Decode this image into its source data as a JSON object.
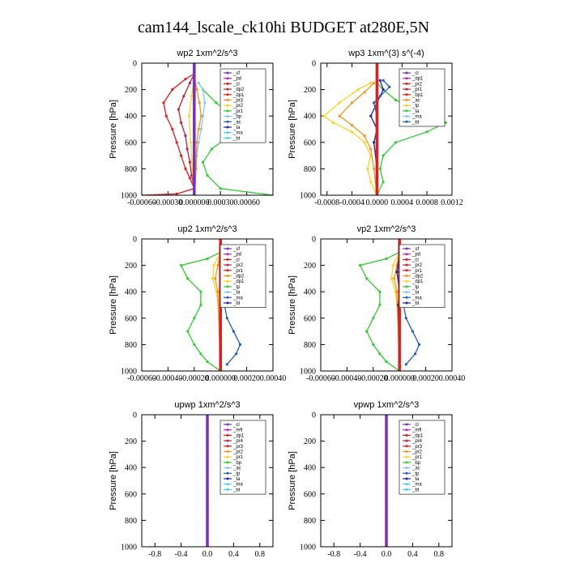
{
  "title": "cam144_lscale_ck10hi  BUDGET at280E,5N",
  "colors": {
    "purple": "#7b2fbf",
    "red": "#e21b1b",
    "darkred": "#c41e3a",
    "orange": "#f7941d",
    "yellow": "#ffd21f",
    "green": "#2ecc2e",
    "blue": "#1f5fbf",
    "cyan": "#3fd0ff",
    "navy": "#2020a0",
    "lightblue": "#7ec8ff",
    "magenta": "#c020c0"
  },
  "chart_data": [
    {
      "type": "line",
      "title": "wp2  1xm^2/s^3",
      "ylabel": "Pressure [hPa]",
      "ylim": [
        0,
        1000
      ],
      "yticks": [
        0,
        200,
        400,
        600,
        800,
        1000
      ],
      "xlim": [
        -0.0006,
        0.0009
      ],
      "xtick_values": [
        -0.0006,
        -0.0003,
        0.0,
        0.0003,
        0.0006
      ],
      "xtick_labels": [
        "-0.00060",
        "-0.00030",
        "0.000000",
        "0.00030",
        "0.00060"
      ],
      "legend": [
        "_sf",
        "_pd",
        "_cl",
        "_dp2",
        "_dp1",
        "_pr3",
        "_pr2",
        "_pr1",
        "_bp",
        "_ac",
        "_ta",
        "_ma",
        "_bt"
      ],
      "series": [
        {
          "name": "_cl",
          "color": "red",
          "x": [
            0,
            -0.0001,
            -0.00025,
            -0.00035,
            -0.00032,
            -0.00025,
            -0.0002,
            -0.00015,
            -0.0001,
            -5e-05,
            0,
            -0.0002,
            -0.0006
          ],
          "y": [
            80,
            120,
            200,
            300,
            400,
            500,
            600,
            700,
            800,
            870,
            950,
            990,
            1000
          ]
        },
        {
          "name": "_dp1",
          "color": "darkred",
          "x": [
            0,
            -5e-05,
            -0.00012,
            -0.00018,
            -0.00015,
            -0.0001,
            -8e-05,
            -5e-05,
            -3e-05,
            0,
            0
          ],
          "y": [
            80,
            150,
            250,
            350,
            450,
            550,
            650,
            750,
            850,
            950,
            1000
          ]
        },
        {
          "name": "_pr1",
          "color": "green",
          "x": [
            5e-05,
            0.0001,
            0.00025,
            0.00045,
            0.0006,
            0.0004,
            0.0002,
            0.0001,
            0.00015,
            0.0003,
            0.0009
          ],
          "y": [
            150,
            200,
            300,
            400,
            450,
            550,
            650,
            750,
            850,
            950,
            1000
          ]
        },
        {
          "name": "_bp",
          "color": "lightblue",
          "x": [
            5e-05,
            0.0001,
            0.00012,
            0.0001,
            8e-05,
            5e-05,
            3e-05,
            2e-05,
            1e-05,
            0.0
          ],
          "y": [
            150,
            200,
            300,
            400,
            500,
            600,
            700,
            800,
            900,
            1000
          ]
        },
        {
          "name": "_pr2",
          "color": "orange",
          "x": [
            0,
            3e-05,
            6e-05,
            8e-05,
            5e-05,
            3e-05,
            2e-05,
            0.0
          ],
          "y": [
            100,
            200,
            300,
            400,
            500,
            600,
            800,
            1000
          ]
        },
        {
          "name": "_pr3",
          "color": "yellow",
          "x": [
            0,
            -3e-05,
            -6e-05,
            -4e-05,
            -2e-05,
            0.0
          ],
          "y": [
            100,
            250,
            400,
            600,
            800,
            1000
          ]
        },
        {
          "name": "_sf",
          "color": "purple",
          "x": [
            0,
            0,
            0,
            0
          ],
          "y": [
            0,
            300,
            700,
            1000
          ]
        }
      ]
    },
    {
      "type": "line",
      "title": "wp3  1xm^(3) s^(-4)",
      "ylabel": "Pressure [hPa]",
      "ylim": [
        0,
        1000
      ],
      "yticks": [
        0,
        200,
        400,
        600,
        800,
        1000
      ],
      "xlim": [
        -0.0009,
        0.0012
      ],
      "xtick_values": [
        -0.0008,
        -0.0004,
        0.0,
        0.0004,
        0.0008,
        0.0012
      ],
      "xtick_labels": [
        "-0.0008",
        "-0.0004",
        "0.0000",
        "0.0004",
        "0.0008",
        "0.0012"
      ],
      "legend": [
        "_cl",
        "_dp1",
        "_pr2",
        "_pr1",
        "_bp1",
        "_ac",
        "_tp",
        "_ta",
        "_ma",
        "_bt"
      ],
      "series": [
        {
          "name": "_pr1",
          "color": "green",
          "x": [
            0,
            0.0001,
            0.0003,
            0.0007,
            0.0011,
            0.0008,
            0.0003,
            0.0001,
            5e-05,
            0.0001,
            0.0
          ],
          "y": [
            150,
            200,
            280,
            350,
            450,
            520,
            600,
            700,
            800,
            900,
            1000
          ]
        },
        {
          "name": "_pr2",
          "color": "yellow",
          "x": [
            -0.0001,
            -0.0003,
            -0.0006,
            -0.00085,
            -0.0007,
            -0.0004,
            -0.0002,
            -0.0001,
            -0.00015,
            -0.0001,
            0.0
          ],
          "y": [
            150,
            200,
            300,
            400,
            450,
            520,
            600,
            700,
            800,
            900,
            1000
          ]
        },
        {
          "name": "_dp1",
          "color": "orange",
          "x": [
            -5e-05,
            -0.0002,
            -0.0004,
            -0.0006,
            -0.0004,
            -0.0002,
            -0.0001,
            -5e-05,
            0.0
          ],
          "y": [
            150,
            220,
            300,
            400,
            470,
            550,
            650,
            800,
            1000
          ]
        },
        {
          "name": "_bp1",
          "color": "navy",
          "x": [
            5e-05,
            0.0001,
            0.0,
            -0.0001,
            0.0,
            -5e-05,
            0.0
          ],
          "y": [
            130,
            200,
            300,
            400,
            500,
            600,
            800
          ]
        },
        {
          "name": "_tp",
          "color": "blue",
          "x": [
            0.0001,
            0.0002,
            5e-05,
            -5e-05,
            0.0
          ],
          "y": [
            130,
            180,
            250,
            300,
            400
          ]
        },
        {
          "name": "_cl",
          "color": "red",
          "x": [
            0,
            0,
            0,
            0
          ],
          "y": [
            0,
            300,
            700,
            1000
          ]
        }
      ]
    },
    {
      "type": "line",
      "title": "up2  1xm^2/s^3",
      "ylabel": "Pressure [hPa]",
      "ylim": [
        0,
        1000
      ],
      "yticks": [
        0,
        200,
        400,
        600,
        800,
        1000
      ],
      "xlim": [
        -0.0006,
        0.0004
      ],
      "xtick_values": [
        -0.0006,
        -0.0004,
        -0.0002,
        0.0,
        0.0002,
        0.0004
      ],
      "xtick_labels": [
        "-0.00060",
        "-0.00040",
        "-0.00020",
        "0.000000",
        "0.00020",
        "0.00040"
      ],
      "legend": [
        "_sf",
        "_pd",
        "_cl",
        "_pr2",
        "_pr1",
        "_dp2",
        "_dp1",
        "_tp",
        "_ta",
        "_ma",
        "_bt"
      ],
      "series": [
        {
          "name": "_pr1",
          "color": "green",
          "x": [
            0,
            -0.0001,
            -0.0003,
            -0.00025,
            -0.00015,
            -0.00015,
            -0.0002,
            -0.00025,
            -0.0002,
            -0.00015,
            -0.0001,
            0.0
          ],
          "y": [
            100,
            150,
            200,
            300,
            400,
            500,
            600,
            700,
            800,
            870,
            930,
            1000
          ]
        },
        {
          "name": "_tp",
          "color": "blue",
          "x": [
            5e-05,
            0.0001,
            0.00015,
            0.0001,
            5e-05,
            3e-05,
            5e-05,
            0.0001,
            0.00015,
            0.00012,
            5e-05
          ],
          "y": [
            100,
            150,
            200,
            300,
            400,
            500,
            600,
            700,
            800,
            870,
            950
          ]
        },
        {
          "name": "_cl",
          "color": "yellow",
          "x": [
            0,
            -5e-05,
            -6e-05,
            -3e-05,
            -1e-05,
            0.0
          ],
          "y": [
            100,
            200,
            300,
            400,
            600,
            1000
          ]
        },
        {
          "name": "_pr2",
          "color": "orange",
          "x": [
            0,
            -2e-05,
            -4e-05,
            -2e-05,
            0.0
          ],
          "y": [
            100,
            200,
            300,
            400,
            1000
          ]
        },
        {
          "name": "_sf",
          "color": "red",
          "x": [
            0,
            0,
            0,
            0
          ],
          "y": [
            0,
            300,
            700,
            1000
          ]
        }
      ]
    },
    {
      "type": "line",
      "title": "vp2  1xm^2/s^3",
      "ylabel": "Pressure [hPa]",
      "ylim": [
        0,
        1000
      ],
      "yticks": [
        0,
        200,
        400,
        600,
        800,
        1000
      ],
      "xlim": [
        -0.0006,
        0.0004
      ],
      "xtick_values": [
        -0.0006,
        -0.0004,
        -0.0002,
        0.0,
        0.0002,
        0.0004
      ],
      "xtick_labels": [
        "-0.00060",
        "-0.00040",
        "-0.00020",
        "0.000000",
        "0.00020",
        "0.00040"
      ],
      "legend": [
        "_sf",
        "_pd",
        "_cl",
        "_pr2",
        "_pr1",
        "_dp2",
        "_dp1",
        "_tp",
        "_ta",
        "_ma",
        "_bt"
      ],
      "series": [
        {
          "name": "_pr1",
          "color": "green",
          "x": [
            0,
            -0.0001,
            -0.0003,
            -0.00025,
            -0.00015,
            -0.00015,
            -0.0002,
            -0.00025,
            -0.0002,
            -0.00015,
            -0.0001,
            0.0
          ],
          "y": [
            100,
            150,
            200,
            300,
            400,
            500,
            600,
            700,
            800,
            870,
            930,
            1000
          ]
        },
        {
          "name": "_tp",
          "color": "blue",
          "x": [
            5e-05,
            0.0001,
            0.00015,
            0.0001,
            5e-05,
            3e-05,
            5e-05,
            0.0001,
            0.00015,
            0.00012,
            5e-05
          ],
          "y": [
            100,
            150,
            200,
            300,
            400,
            500,
            600,
            700,
            800,
            870,
            950
          ]
        },
        {
          "name": "_cl",
          "color": "yellow",
          "x": [
            0,
            -5e-05,
            -6e-05,
            -3e-05,
            -1e-05,
            0.0
          ],
          "y": [
            100,
            200,
            300,
            400,
            600,
            1000
          ]
        },
        {
          "name": "_pr2",
          "color": "orange",
          "x": [
            0,
            -2e-05,
            -4e-05,
            -2e-05,
            0.0
          ],
          "y": [
            100,
            200,
            300,
            400,
            1000
          ]
        },
        {
          "name": "_dp1",
          "color": "navy",
          "x": [
            0,
            -2e-05,
            0.0,
            -1e-05,
            0.0
          ],
          "y": [
            100,
            250,
            400,
            500,
            1000
          ]
        },
        {
          "name": "_sf",
          "color": "red",
          "x": [
            0,
            0,
            0,
            0
          ],
          "y": [
            0,
            300,
            700,
            1000
          ]
        }
      ]
    },
    {
      "type": "line",
      "title": "upwp  1xm^2/s^3",
      "ylabel": "Pressure [hPa]",
      "ylim": [
        0,
        1000
      ],
      "yticks": [
        0,
        200,
        400,
        600,
        800,
        1000
      ],
      "xlim": [
        -1.0,
        1.0
      ],
      "xtick_values": [
        -0.8,
        -0.4,
        0.0,
        0.4,
        0.8
      ],
      "xtick_labels": [
        "-0.8",
        "-0.4",
        "0.0",
        "0.4",
        "0.8"
      ],
      "legend": [
        "_cl",
        "_mfl",
        "_dp1",
        "_pr4",
        "_pr3",
        "_pr2",
        "_pr1",
        "_bp",
        "_ac",
        "_tp",
        "_ta",
        "_ma",
        "_bt"
      ],
      "series": [
        {
          "name": "_cl",
          "color": "purple",
          "x": [
            0,
            0,
            0,
            0,
            0,
            0,
            0,
            0,
            0,
            0,
            0
          ],
          "y": [
            0,
            100,
            200,
            300,
            400,
            500,
            600,
            700,
            800,
            900,
            1000
          ]
        }
      ]
    },
    {
      "type": "line",
      "title": "vpwp  1xm^2/s^3",
      "ylabel": "Pressure [hPa]",
      "ylim": [
        0,
        1000
      ],
      "yticks": [
        0,
        200,
        400,
        600,
        800,
        1000
      ],
      "xlim": [
        -1.0,
        1.0
      ],
      "xtick_values": [
        -0.8,
        -0.4,
        0.0,
        0.4,
        0.8
      ],
      "xtick_labels": [
        "-0.8",
        "-0.4",
        "0.0",
        "0.4",
        "0.8"
      ],
      "legend": [
        "_cl",
        "_mfl",
        "_dp1",
        "_pr4",
        "_pr3",
        "_pr2",
        "_pr1",
        "_bp",
        "_ac",
        "_tp",
        "_ta",
        "_ma",
        "_bt"
      ],
      "series": [
        {
          "name": "_cl",
          "color": "purple",
          "x": [
            0,
            0,
            0,
            0,
            0,
            0,
            0,
            0,
            0,
            0,
            0
          ],
          "y": [
            0,
            100,
            200,
            300,
            400,
            500,
            600,
            700,
            800,
            900,
            1000
          ]
        }
      ]
    }
  ]
}
